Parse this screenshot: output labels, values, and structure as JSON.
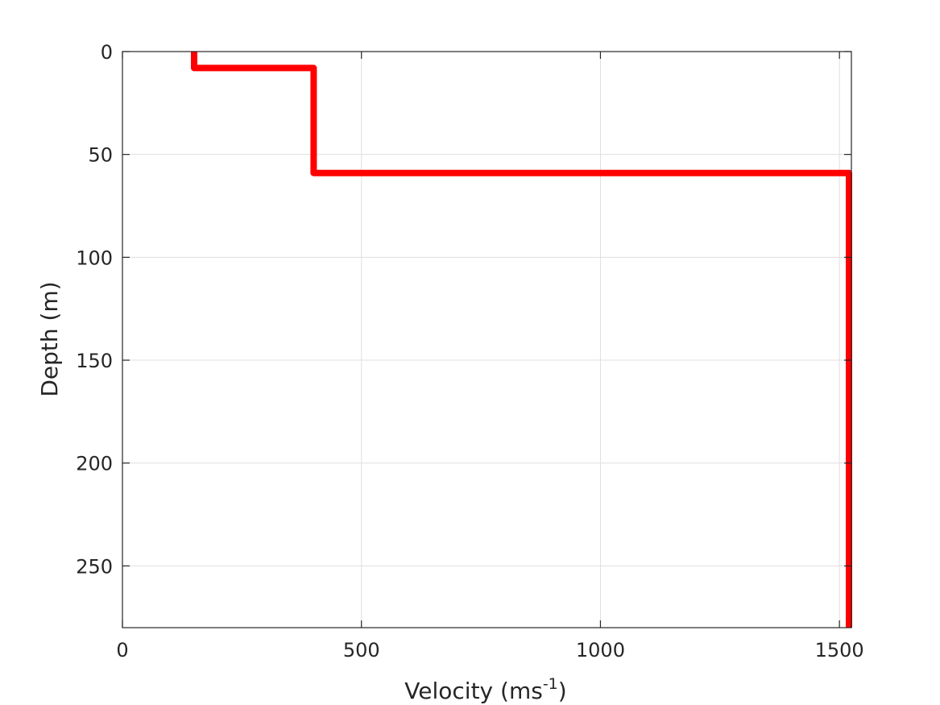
{
  "chart_data": {
    "type": "line",
    "xlabel": "Velocity (ms",
    "xlabel_superscript": "-1",
    "xlabel_suffix": ")",
    "ylabel": "Depth (m)",
    "xlim": [
      0,
      1525
    ],
    "ylim": [
      0,
      280
    ],
    "y_reversed": true,
    "x_ticks": [
      0,
      500,
      1000,
      1500
    ],
    "x_tick_labels": [
      "0",
      "500",
      "1000",
      "1500"
    ],
    "y_ticks": [
      0,
      50,
      100,
      150,
      200,
      250
    ],
    "y_tick_labels": [
      "0",
      "50",
      "100",
      "150",
      "200",
      "250"
    ],
    "grid": true,
    "series": [
      {
        "color": "#ff0000",
        "x": [
          150,
          150,
          400,
          400,
          1520,
          1520
        ],
        "y": [
          0,
          8,
          8,
          59,
          59,
          280
        ]
      }
    ]
  }
}
